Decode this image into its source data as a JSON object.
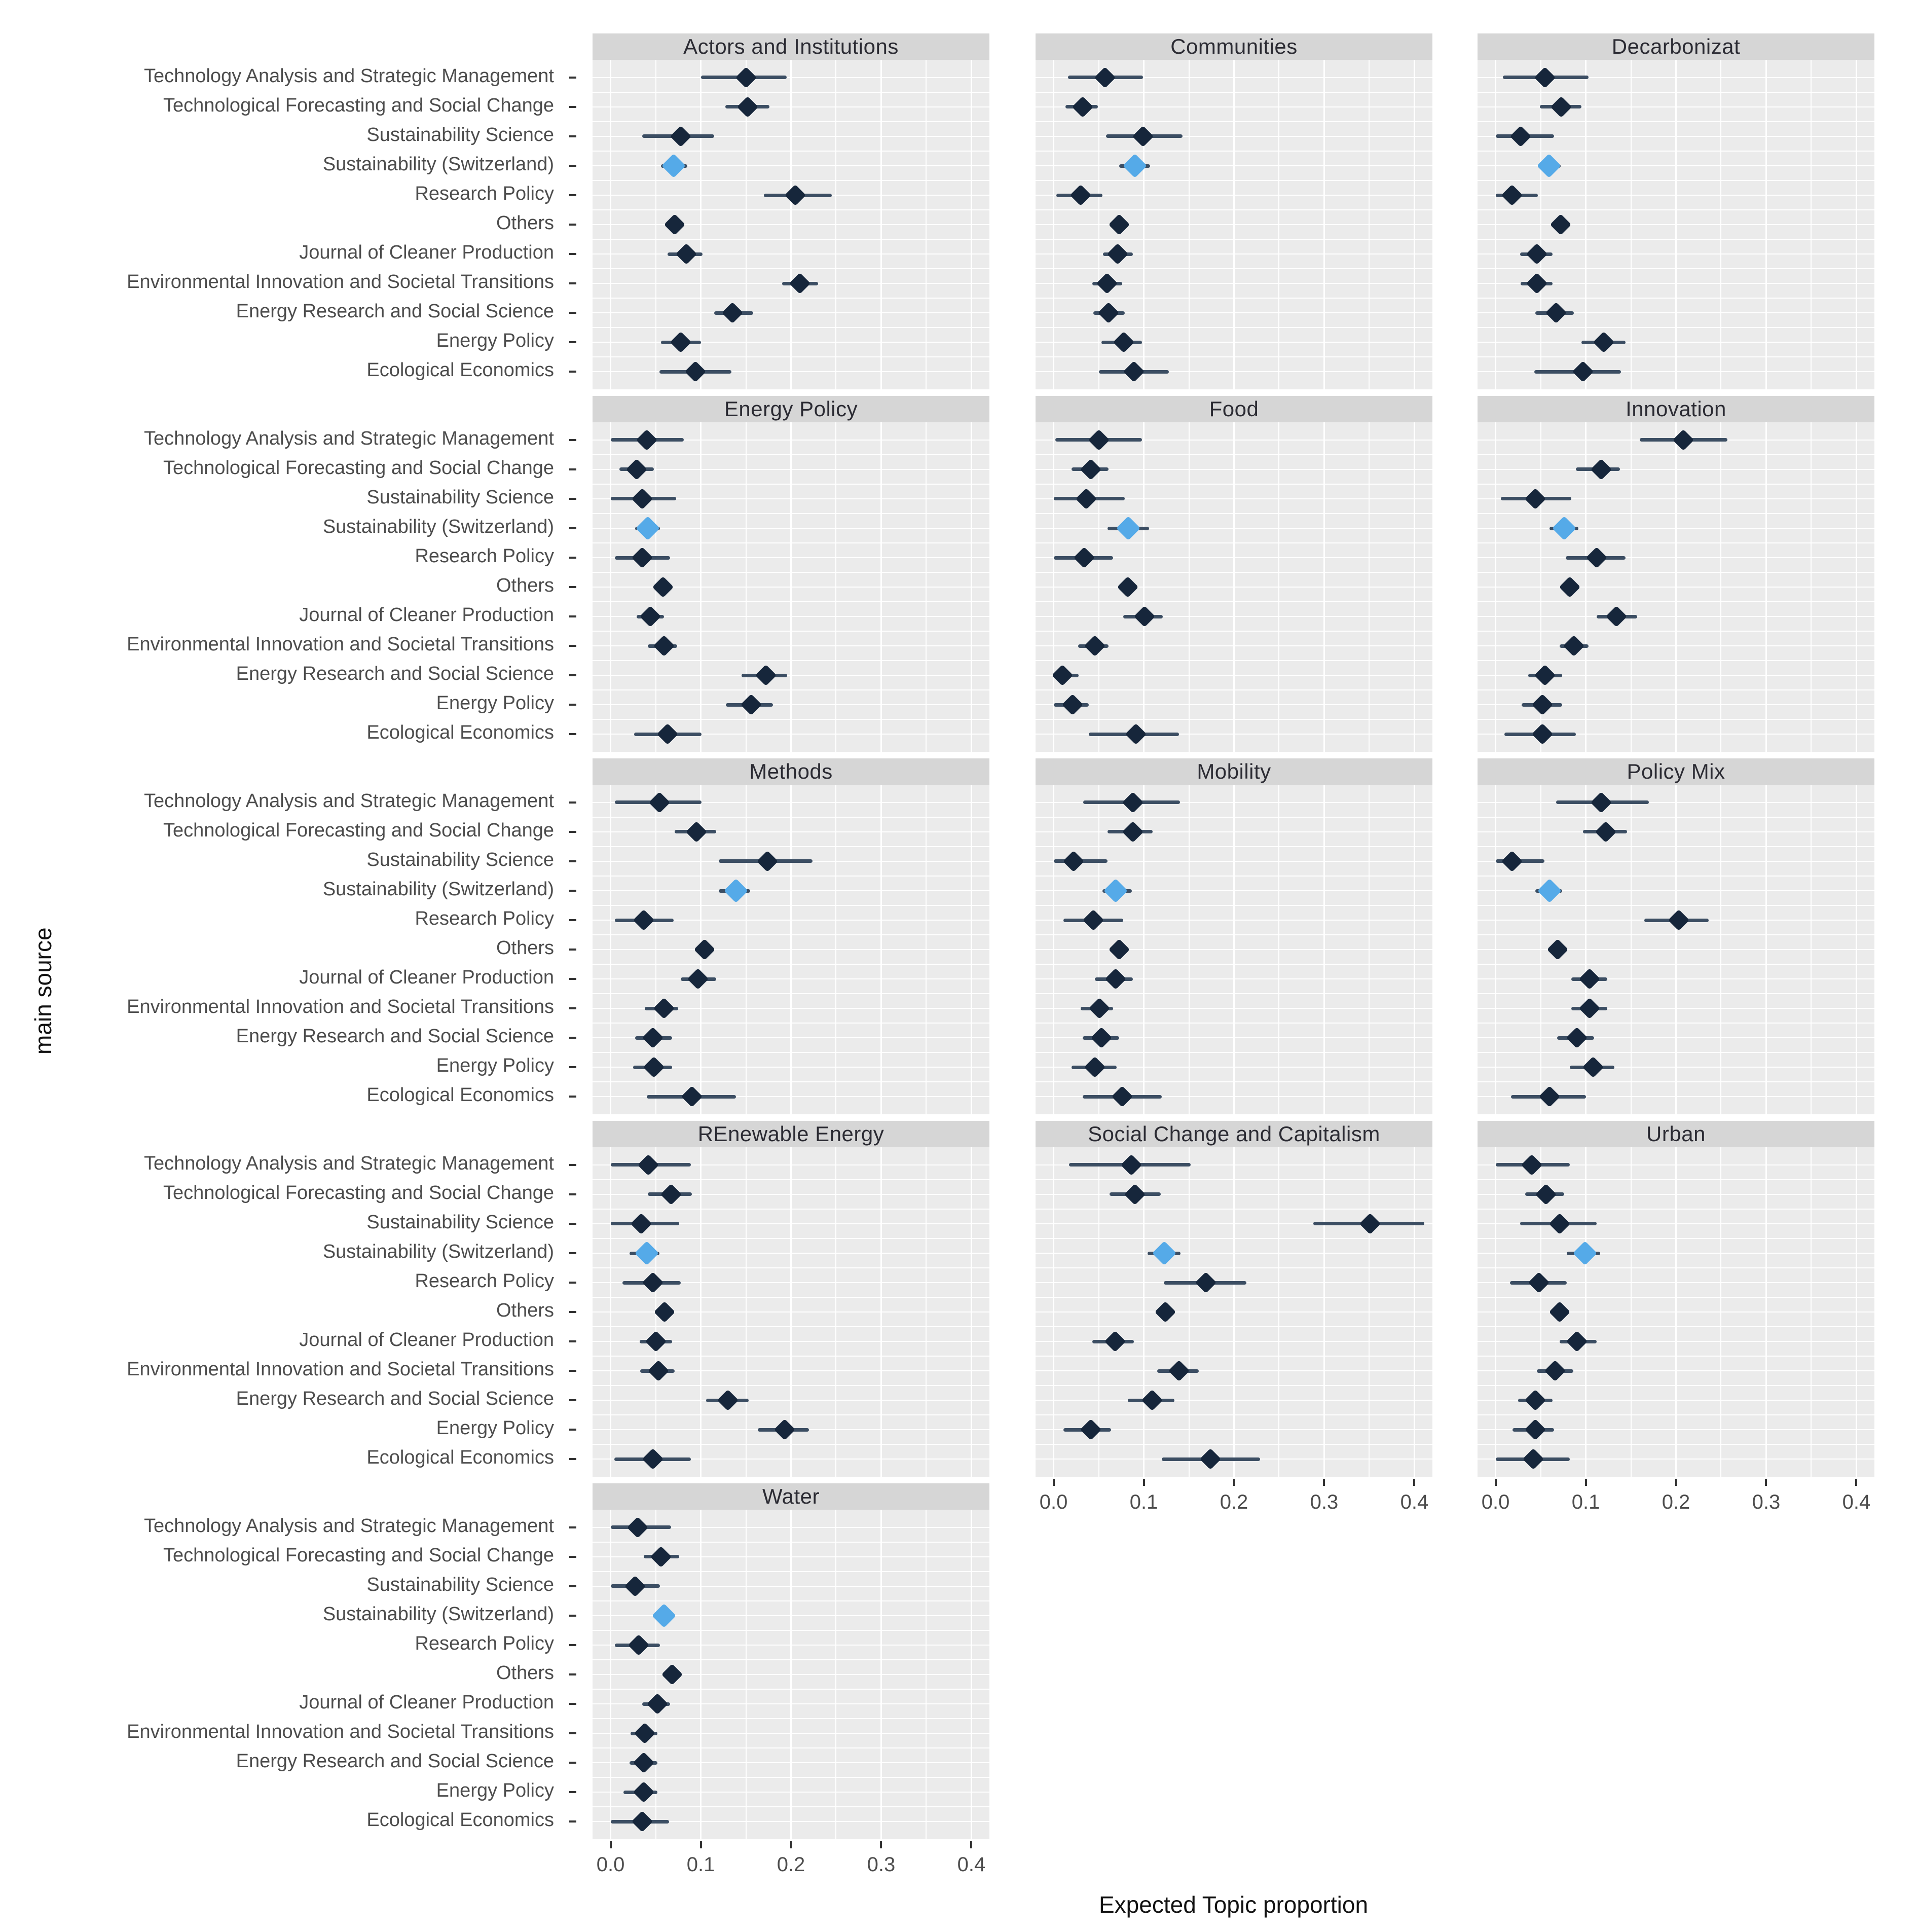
{
  "chart_data": {
    "type": "pointrange",
    "title": "",
    "xlabel": "Expected Topic proportion",
    "ylabel": "main source",
    "xlim": [
      -0.02,
      0.42
    ],
    "x_major_ticks": [
      0.0,
      0.1,
      0.2,
      0.3,
      0.4
    ],
    "x_tick_labels": [
      "0.0",
      "0.1",
      "0.2",
      "0.3",
      "0.4"
    ],
    "x_minor_ticks": [
      0.05,
      0.15,
      0.25,
      0.35
    ],
    "grid": "on",
    "legend": "none",
    "colors": {
      "point_dark": "#16263b",
      "point_highlight": "#55aae8",
      "error_bar": "#3c4e63",
      "panel_bg": "#ebebeb",
      "strip_bg": "#d6d6d6",
      "grid_line": "#ffffff",
      "tick_text": "#4d4d4d"
    },
    "categories": [
      "Technology Analysis and Strategic Management",
      "Technological Forecasting and Social Change",
      "Sustainability Science",
      "Sustainability (Switzerland)",
      "Research Policy",
      "Others",
      "Journal of Cleaner Production",
      "Environmental Innovation and Societal Transitions",
      "Energy Research and Social Science",
      "Energy Policy",
      "Ecological Economics"
    ],
    "highlight_category": "Sustainability (Switzerland)",
    "highlight_index": 3,
    "facets": [
      {
        "title": "Actors and Institutions",
        "show_x_axis": false,
        "rows": [
          [
            0.15,
            0.1,
            0.195
          ],
          [
            0.152,
            0.127,
            0.176
          ],
          [
            0.078,
            0.035,
            0.115
          ],
          [
            0.07,
            0.056,
            0.085
          ],
          [
            0.205,
            0.17,
            0.245
          ],
          [
            0.071,
            0.064,
            0.078
          ],
          [
            0.084,
            0.063,
            0.102
          ],
          [
            0.21,
            0.19,
            0.23
          ],
          [
            0.135,
            0.115,
            0.158
          ],
          [
            0.078,
            0.056,
            0.1
          ],
          [
            0.094,
            0.054,
            0.134
          ]
        ]
      },
      {
        "title": "Communities",
        "show_x_axis": false,
        "rows": [
          [
            0.057,
            0.016,
            0.099
          ],
          [
            0.032,
            0.013,
            0.049
          ],
          [
            0.099,
            0.058,
            0.143
          ],
          [
            0.09,
            0.073,
            0.107
          ],
          [
            0.03,
            0.003,
            0.054
          ],
          [
            0.073,
            0.067,
            0.079
          ],
          [
            0.071,
            0.055,
            0.088
          ],
          [
            0.059,
            0.043,
            0.076
          ],
          [
            0.061,
            0.044,
            0.079
          ],
          [
            0.078,
            0.053,
            0.098
          ],
          [
            0.089,
            0.05,
            0.128
          ]
        ]
      },
      {
        "title": "Decarbonizat",
        "show_x_axis": false,
        "rows": [
          [
            0.055,
            0.008,
            0.103
          ],
          [
            0.073,
            0.049,
            0.095
          ],
          [
            0.028,
            0.0,
            0.065
          ],
          [
            0.059,
            0.047,
            0.072
          ],
          [
            0.018,
            0.0,
            0.047
          ],
          [
            0.072,
            0.065,
            0.079
          ],
          [
            0.046,
            0.027,
            0.063
          ],
          [
            0.046,
            0.028,
            0.063
          ],
          [
            0.067,
            0.044,
            0.087
          ],
          [
            0.12,
            0.095,
            0.144
          ],
          [
            0.097,
            0.043,
            0.139
          ]
        ]
      },
      {
        "title": "Energy Policy",
        "show_x_axis": false,
        "rows": [
          [
            0.04,
            0.0,
            0.081
          ],
          [
            0.029,
            0.01,
            0.048
          ],
          [
            0.035,
            0.0,
            0.073
          ],
          [
            0.041,
            0.027,
            0.055
          ],
          [
            0.035,
            0.005,
            0.066
          ],
          [
            0.058,
            0.052,
            0.064
          ],
          [
            0.044,
            0.029,
            0.059
          ],
          [
            0.059,
            0.041,
            0.074
          ],
          [
            0.172,
            0.145,
            0.196
          ],
          [
            0.156,
            0.128,
            0.18
          ],
          [
            0.063,
            0.026,
            0.101
          ]
        ]
      },
      {
        "title": "Food",
        "show_x_axis": false,
        "rows": [
          [
            0.05,
            0.002,
            0.098
          ],
          [
            0.041,
            0.02,
            0.061
          ],
          [
            0.036,
            0.0,
            0.079
          ],
          [
            0.083,
            0.06,
            0.106
          ],
          [
            0.034,
            0.0,
            0.066
          ],
          [
            0.082,
            0.074,
            0.09
          ],
          [
            0.101,
            0.077,
            0.121
          ],
          [
            0.046,
            0.027,
            0.061
          ],
          [
            0.01,
            0.0,
            0.028
          ],
          [
            0.021,
            0.0,
            0.039
          ],
          [
            0.091,
            0.039,
            0.139
          ]
        ]
      },
      {
        "title": "Innovation",
        "show_x_axis": false,
        "rows": [
          [
            0.208,
            0.16,
            0.257
          ],
          [
            0.117,
            0.089,
            0.138
          ],
          [
            0.044,
            0.006,
            0.084
          ],
          [
            0.076,
            0.06,
            0.092
          ],
          [
            0.112,
            0.078,
            0.144
          ],
          [
            0.082,
            0.076,
            0.089
          ],
          [
            0.134,
            0.112,
            0.157
          ],
          [
            0.087,
            0.071,
            0.103
          ],
          [
            0.055,
            0.036,
            0.074
          ],
          [
            0.052,
            0.029,
            0.074
          ],
          [
            0.052,
            0.01,
            0.089
          ]
        ]
      },
      {
        "title": "Methods",
        "show_x_axis": false,
        "rows": [
          [
            0.054,
            0.005,
            0.101
          ],
          [
            0.095,
            0.071,
            0.117
          ],
          [
            0.174,
            0.12,
            0.224
          ],
          [
            0.139,
            0.12,
            0.155
          ],
          [
            0.037,
            0.005,
            0.07
          ],
          [
            0.104,
            0.097,
            0.114
          ],
          [
            0.097,
            0.078,
            0.117
          ],
          [
            0.059,
            0.038,
            0.075
          ],
          [
            0.047,
            0.027,
            0.068
          ],
          [
            0.048,
            0.025,
            0.068
          ],
          [
            0.09,
            0.04,
            0.139
          ]
        ]
      },
      {
        "title": "Mobility",
        "show_x_axis": false,
        "rows": [
          [
            0.088,
            0.033,
            0.14
          ],
          [
            0.088,
            0.06,
            0.11
          ],
          [
            0.022,
            0.0,
            0.06
          ],
          [
            0.069,
            0.054,
            0.087
          ],
          [
            0.044,
            0.011,
            0.077
          ],
          [
            0.073,
            0.068,
            0.079
          ],
          [
            0.069,
            0.046,
            0.088
          ],
          [
            0.051,
            0.03,
            0.066
          ],
          [
            0.053,
            0.032,
            0.073
          ],
          [
            0.046,
            0.02,
            0.07
          ],
          [
            0.076,
            0.032,
            0.12
          ]
        ]
      },
      {
        "title": "Policy Mix",
        "show_x_axis": false,
        "rows": [
          [
            0.117,
            0.067,
            0.17
          ],
          [
            0.122,
            0.097,
            0.146
          ],
          [
            0.018,
            0.0,
            0.054
          ],
          [
            0.06,
            0.044,
            0.074
          ],
          [
            0.203,
            0.165,
            0.236
          ],
          [
            0.069,
            0.063,
            0.076
          ],
          [
            0.104,
            0.084,
            0.124
          ],
          [
            0.104,
            0.084,
            0.124
          ],
          [
            0.09,
            0.068,
            0.109
          ],
          [
            0.108,
            0.082,
            0.132
          ],
          [
            0.06,
            0.017,
            0.1
          ]
        ]
      },
      {
        "title": "REnewable Energy",
        "show_x_axis": false,
        "rows": [
          [
            0.042,
            0.0,
            0.089
          ],
          [
            0.067,
            0.041,
            0.09
          ],
          [
            0.034,
            0.0,
            0.076
          ],
          [
            0.04,
            0.021,
            0.054
          ],
          [
            0.047,
            0.013,
            0.078
          ],
          [
            0.06,
            0.054,
            0.067
          ],
          [
            0.05,
            0.032,
            0.068
          ],
          [
            0.053,
            0.033,
            0.071
          ],
          [
            0.13,
            0.106,
            0.153
          ],
          [
            0.193,
            0.163,
            0.22
          ],
          [
            0.047,
            0.004,
            0.089
          ]
        ]
      },
      {
        "title": "Social Change and Capitalism",
        "show_x_axis": true,
        "rows": [
          [
            0.086,
            0.017,
            0.152
          ],
          [
            0.09,
            0.062,
            0.119
          ],
          [
            0.351,
            0.288,
            0.411
          ],
          [
            0.123,
            0.104,
            0.141
          ],
          [
            0.169,
            0.122,
            0.214
          ],
          [
            0.124,
            0.117,
            0.132
          ],
          [
            0.068,
            0.043,
            0.089
          ],
          [
            0.139,
            0.115,
            0.161
          ],
          [
            0.109,
            0.082,
            0.134
          ],
          [
            0.041,
            0.011,
            0.064
          ],
          [
            0.174,
            0.12,
            0.229
          ]
        ]
      },
      {
        "title": "Urban",
        "show_x_axis": true,
        "rows": [
          [
            0.04,
            0.0,
            0.082
          ],
          [
            0.056,
            0.033,
            0.076
          ],
          [
            0.071,
            0.027,
            0.112
          ],
          [
            0.099,
            0.079,
            0.116
          ],
          [
            0.048,
            0.016,
            0.079
          ],
          [
            0.071,
            0.064,
            0.077
          ],
          [
            0.09,
            0.071,
            0.112
          ],
          [
            0.066,
            0.046,
            0.086
          ],
          [
            0.044,
            0.025,
            0.063
          ],
          [
            0.044,
            0.019,
            0.065
          ],
          [
            0.042,
            0.0,
            0.082
          ]
        ]
      },
      {
        "title": "Water",
        "show_x_axis": true,
        "rows": [
          [
            0.03,
            0.0,
            0.067
          ],
          [
            0.056,
            0.037,
            0.076
          ],
          [
            0.027,
            0.0,
            0.055
          ],
          [
            0.059,
            0.047,
            0.071
          ],
          [
            0.031,
            0.005,
            0.055
          ],
          [
            0.068,
            0.06,
            0.076
          ],
          [
            0.052,
            0.035,
            0.066
          ],
          [
            0.038,
            0.022,
            0.052
          ],
          [
            0.037,
            0.021,
            0.052
          ],
          [
            0.037,
            0.014,
            0.052
          ],
          [
            0.035,
            0.0,
            0.065
          ]
        ]
      }
    ]
  }
}
